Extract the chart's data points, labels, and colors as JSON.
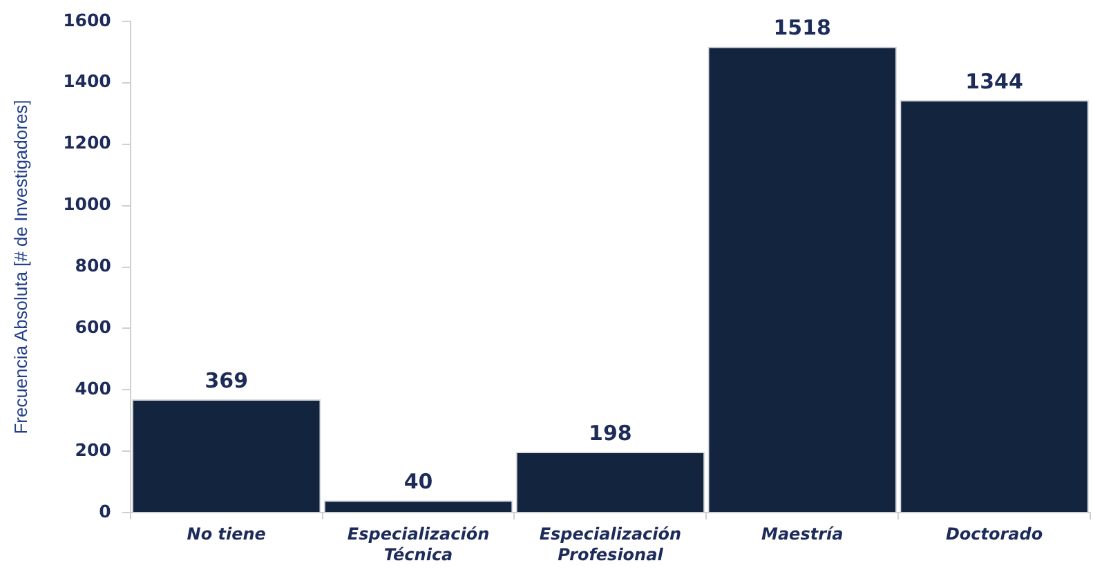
{
  "chart_data": {
    "type": "bar",
    "ylabel": "Frecuencia Absoluta [# de Investigadores]",
    "categories": [
      "No tiene",
      "Especialización Técnica",
      "Especialización Profesional",
      "Maestría",
      "Doctorado"
    ],
    "values": [
      369,
      40,
      198,
      1518,
      1344
    ],
    "color": "#13243f",
    "ylim": [
      0,
      1600
    ],
    "yticks": [
      0,
      200,
      400,
      600,
      800,
      1000,
      1200,
      1400,
      1600
    ],
    "grid": false,
    "legend": false,
    "data_labels": true
  }
}
